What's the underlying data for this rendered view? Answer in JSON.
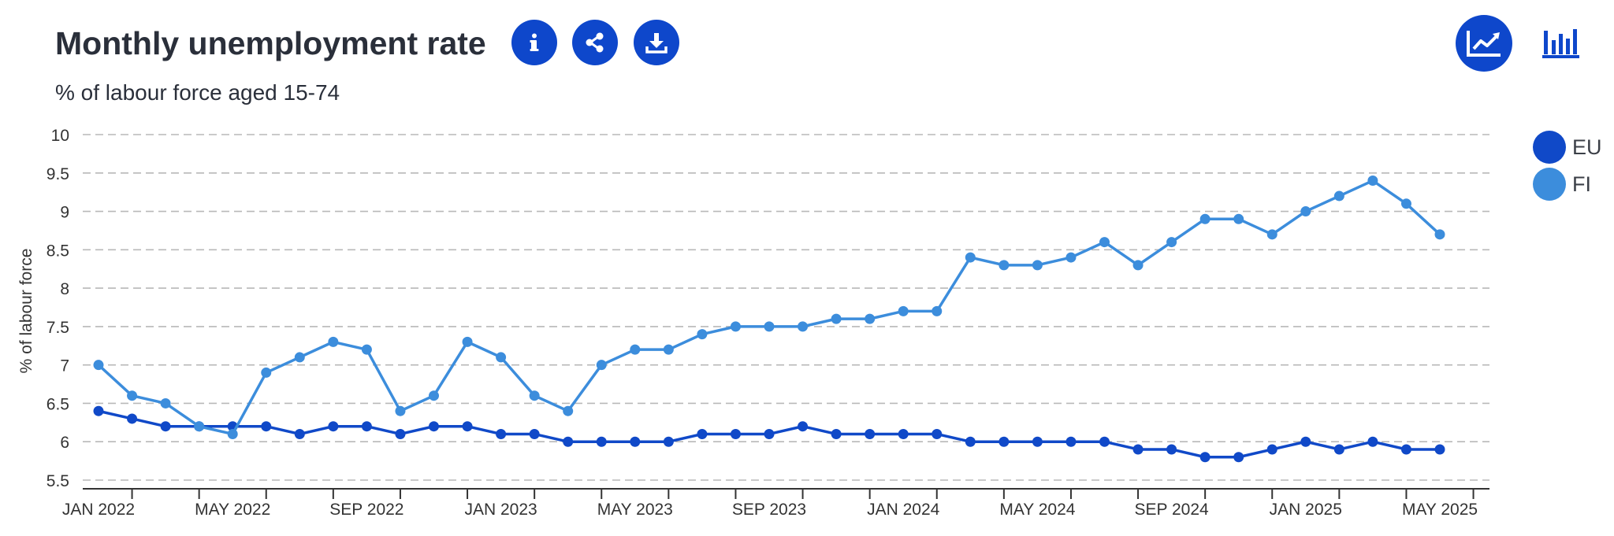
{
  "header": {
    "title": "Monthly unemployment rate",
    "subtitle": "% of labour force aged 15-74",
    "buttons": {
      "info": "info-icon",
      "share": "share-icon",
      "download": "download-icon",
      "line_view": "line-chart-icon",
      "bar_view": "bar-chart-icon"
    }
  },
  "colors": {
    "brand": "#0e47cb",
    "eu": "#1049c8",
    "fi": "#3c8ddc",
    "grid": "#b8b8b8"
  },
  "chart_data": {
    "type": "line",
    "ylabel": "% of labour force",
    "ylim": [
      5.5,
      10
    ],
    "yticks": [
      "10",
      "9.5",
      "9",
      "8.5",
      "8",
      "7.5",
      "7",
      "6.5",
      "6",
      "5.5"
    ],
    "grid": true,
    "legend": "top-right",
    "x": [
      "JAN 2022",
      "FEB 2022",
      "MAR 2022",
      "APR 2022",
      "MAY 2022",
      "JUN 2022",
      "JUL 2022",
      "AUG 2022",
      "SEP 2022",
      "OCT 2022",
      "NOV 2022",
      "DEC 2022",
      "JAN 2023",
      "FEB 2023",
      "MAR 2023",
      "APR 2023",
      "MAY 2023",
      "JUN 2023",
      "JUL 2023",
      "AUG 2023",
      "SEP 2023",
      "OCT 2023",
      "NOV 2023",
      "DEC 2023",
      "JAN 2024",
      "FEB 2024",
      "MAR 2024",
      "APR 2024",
      "MAY 2024",
      "JUN 2024",
      "JUL 2024",
      "AUG 2024",
      "SEP 2024",
      "OCT 2024",
      "NOV 2024",
      "DEC 2024",
      "JAN 2025",
      "FEB 2025",
      "MAR 2025",
      "APR 2025",
      "MAY 2025"
    ],
    "xticklabels": [
      "JAN 2022",
      "MAY 2022",
      "SEP 2022",
      "JAN 2023",
      "MAY 2023",
      "SEP 2023",
      "JAN 2024",
      "MAY 2024",
      "SEP 2024",
      "JAN 2025",
      "MAY 2025"
    ],
    "series": [
      {
        "name": "EU",
        "values": [
          6.4,
          6.3,
          6.2,
          6.2,
          6.2,
          6.2,
          6.1,
          6.2,
          6.2,
          6.1,
          6.2,
          6.2,
          6.1,
          6.1,
          6.0,
          6.0,
          6.0,
          6.0,
          6.1,
          6.1,
          6.1,
          6.2,
          6.1,
          6.1,
          6.1,
          6.1,
          6.0,
          6.0,
          6.0,
          6.0,
          6.0,
          5.9,
          5.9,
          5.8,
          5.8,
          5.9,
          6.0,
          5.9,
          6.0,
          5.9,
          5.9
        ]
      },
      {
        "name": "FI",
        "values": [
          7.0,
          6.6,
          6.5,
          6.2,
          6.1,
          6.9,
          7.1,
          7.3,
          7.2,
          6.4,
          6.6,
          7.3,
          7.1,
          6.6,
          6.4,
          7.0,
          7.2,
          7.2,
          7.4,
          7.5,
          7.5,
          7.5,
          7.6,
          7.6,
          7.7,
          7.7,
          8.4,
          8.3,
          8.3,
          8.4,
          8.6,
          8.3,
          8.6,
          8.9,
          8.9,
          8.7,
          9.0,
          9.2,
          9.4,
          9.1,
          8.7
        ]
      }
    ]
  }
}
